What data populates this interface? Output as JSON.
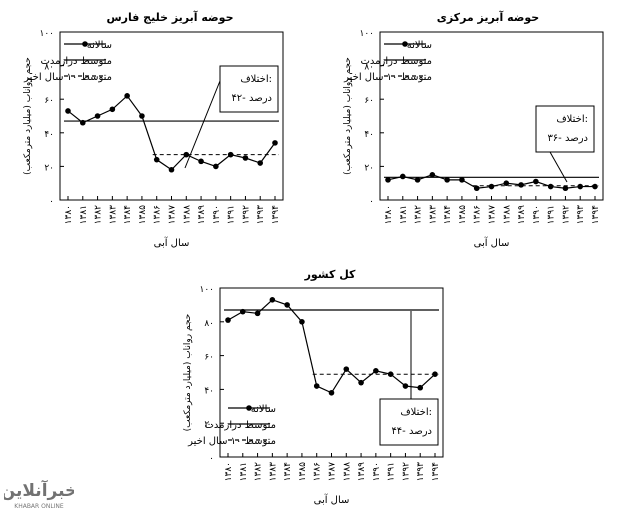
{
  "years": [
    "۱۳۸۰",
    "۱۳۸۱",
    "۱۳۸۲",
    "۱۳۸۳",
    "۱۳۸۴",
    "۱۳۸۵",
    "۱۳۸۶",
    "۱۳۸۷",
    "۱۳۸۸",
    "۱۳۸۹",
    "۱۳۹۰",
    "۱۳۹۱",
    "۱۳۹۲",
    "۱۳۹۳",
    "۱۳۹۴"
  ],
  "watermark": {
    "main": "خبرآنلاین",
    "sub": "KHABAR ONLINE",
    "color": "#c8c8c8"
  },
  "chart_data": [
    {
      "type": "line",
      "title": "حوضه آبریز خلیج فارس",
      "xlabel": "سال آبی",
      "ylabel": "حجم رواناب (میلیارد مترمکعب)",
      "ylim": [
        0,
        100
      ],
      "yticks": [
        "۰",
        "۲۰",
        "۴۰",
        "۶۰",
        "۸۰",
        "۱۰۰"
      ],
      "legend": [
        "سالانه",
        "متوسط درازمدت",
        "متوسط ۱۰ سال اخیر"
      ],
      "legend_position": "top-left",
      "annotation": [
        "اختلاف:",
        "۴۲- درصد"
      ],
      "series": [
        {
          "name": "سالانه",
          "values": [
            53,
            46,
            50,
            54,
            62,
            50,
            24,
            18,
            27,
            23,
            20,
            27,
            25,
            22,
            34
          ]
        }
      ],
      "long_term_mean": 47,
      "recent_mean": 27
    },
    {
      "type": "line",
      "title": "حوضه آبریز مرکزی",
      "xlabel": "سال آبی",
      "ylabel": "حجم رواناب (میلیارد مترمکعب)",
      "ylim": [
        0,
        100
      ],
      "yticks": [
        "۰",
        "۲۰",
        "۴۰",
        "۶۰",
        "۸۰",
        "۱۰۰"
      ],
      "legend": [
        "سالانه",
        "متوسط درازمدت",
        "متوسط ۱۰ سال اخیر"
      ],
      "legend_position": "top-left",
      "annotation": [
        "اختلاف:",
        "۳۶- درصد"
      ],
      "series": [
        {
          "name": "سالانه",
          "values": [
            12,
            14,
            12,
            15,
            12,
            12,
            7,
            8,
            10,
            9,
            11,
            8,
            7,
            8,
            8
          ]
        }
      ],
      "long_term_mean": 13.5,
      "recent_mean": 8.5
    },
    {
      "type": "line",
      "title": "کل کشور",
      "xlabel": "سال آبی",
      "ylabel": "حجم رواناب (میلیارد مترمکعب)",
      "ylim": [
        0,
        100
      ],
      "yticks": [
        "۰",
        "۲۰",
        "۴۰",
        "۶۰",
        "۸۰",
        "۱۰۰"
      ],
      "legend": [
        "سالانه",
        "متوسط درازمدت",
        "متوسط ۱۰ سال اخیر"
      ],
      "legend_position": "bottom-left",
      "annotation": [
        "اختلاف:",
        "۴۴- درصد"
      ],
      "series": [
        {
          "name": "سالانه",
          "values": [
            81,
            86,
            85,
            93,
            90,
            80,
            42,
            38,
            52,
            44,
            51,
            49,
            42,
            41,
            49
          ]
        }
      ],
      "long_term_mean": 87,
      "recent_mean": 49
    }
  ]
}
